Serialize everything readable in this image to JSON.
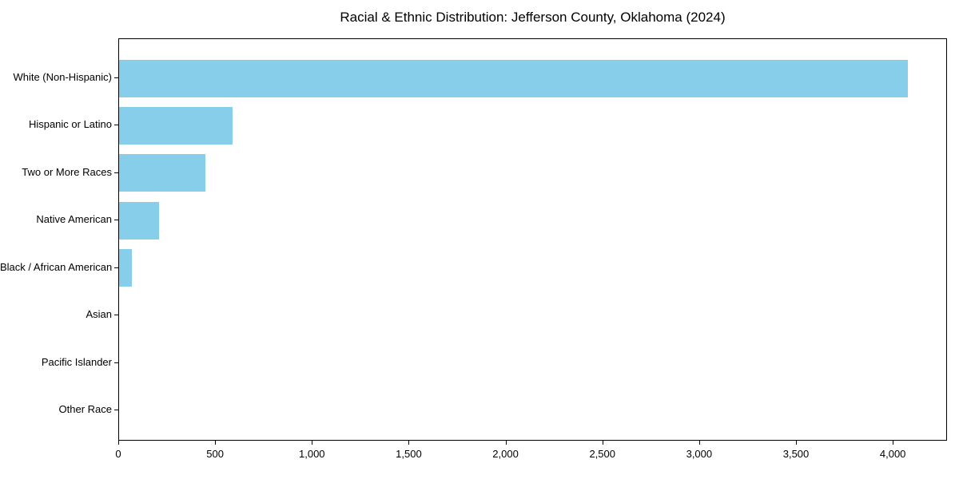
{
  "chart_data": {
    "type": "bar",
    "orientation": "horizontal",
    "title": "Racial & Ethnic Distribution: Jefferson County, Oklahoma (2024)",
    "categories": [
      "White (Non-Hispanic)",
      "Hispanic or Latino",
      "Two or More Races",
      "Native American",
      "Black / African American",
      "Asian",
      "Pacific Islander",
      "Other Race"
    ],
    "values": [
      4075,
      585,
      445,
      205,
      65,
      0,
      0,
      0
    ],
    "xlabel": "",
    "ylabel": "",
    "xlim": [
      0,
      4280
    ],
    "xticks": [
      0,
      500,
      1000,
      1500,
      2000,
      2500,
      3000,
      3500,
      4000
    ],
    "xtick_labels": [
      "0",
      "500",
      "1,000",
      "1,500",
      "2,000",
      "2,500",
      "3,000",
      "3,500",
      "4,000"
    ],
    "bar_color": "#87CEEB",
    "axis_color": "#000000",
    "text_color": "#000000",
    "background": "#ffffff",
    "grid": false,
    "legend": null
  }
}
